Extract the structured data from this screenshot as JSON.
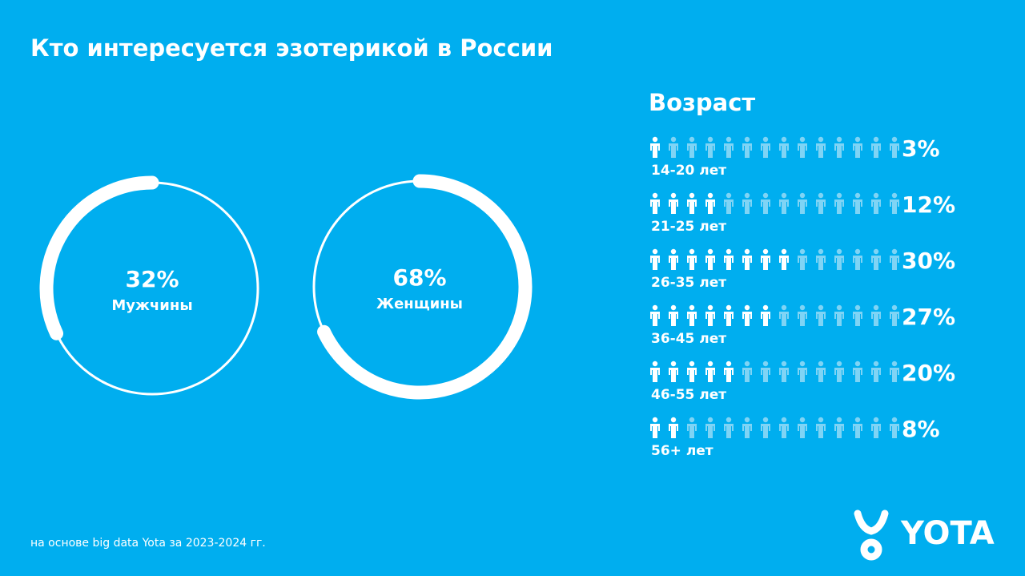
{
  "title": "Кто интересуется эзотерикой в России",
  "chart_data": [
    {
      "type": "donut",
      "categories": [
        "Мужчины",
        "Женщины"
      ],
      "values": [
        32,
        68
      ],
      "value_labels": [
        "32%",
        "68%"
      ],
      "color": "#ffffff"
    },
    {
      "type": "pictograph",
      "title": "Возраст",
      "categories": [
        "14-20 лет",
        "21-25 лет",
        "26-35 лет",
        "36-45 лет",
        "46-55 лет",
        "56+ лет"
      ],
      "values": [
        3,
        12,
        30,
        27,
        20,
        8
      ],
      "value_labels": [
        "3%",
        "12%",
        "30%",
        "27%",
        "20%",
        "8%"
      ],
      "icons_total": 14,
      "icons_filled": [
        1,
        4,
        8,
        7,
        5,
        2
      ],
      "color": "#ffffff",
      "empty_color": "#7fd4f5"
    }
  ],
  "source": "на основе big data Yota за 2023-2024 гг.",
  "logo": "YOTA"
}
